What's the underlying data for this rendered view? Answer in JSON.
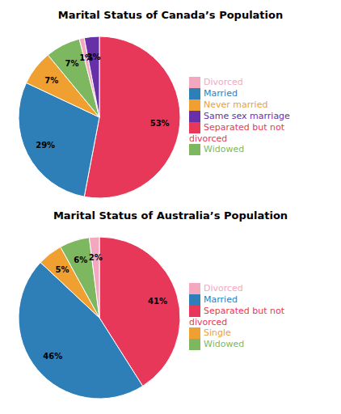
{
  "chart_data": [
    {
      "type": "pie",
      "title": "Marital Status of Canada’s Population",
      "categories": [
        "Separated but not divorced",
        "Married",
        "Never married",
        "Widowed",
        "Divorced",
        "Same sex marriage"
      ],
      "values": [
        53,
        29,
        7,
        7,
        1,
        3
      ],
      "value_labels": [
        "53%",
        "29%",
        "7%",
        "7%",
        "1%",
        "3%"
      ],
      "colors": [
        "#E8385A",
        "#2E7EB8",
        "#F0A030",
        "#7DB860",
        "#F4A8C0",
        "#6830A8"
      ],
      "data_labels": true,
      "legend": "right"
    },
    {
      "type": "pie",
      "title": "Marital Status of Australia’s Population",
      "categories": [
        "Separated but not divorced",
        "Married",
        "Single",
        "Widowed",
        "Divorced"
      ],
      "values": [
        41,
        46,
        5,
        6,
        2
      ],
      "value_labels": [
        "41%",
        "46%",
        "5%",
        "6%",
        "2%"
      ],
      "colors": [
        "#E8385A",
        "#2E7EB8",
        "#F0A030",
        "#7DB860",
        "#F4A8C0"
      ],
      "data_labels": true,
      "legend": "right"
    }
  ]
}
